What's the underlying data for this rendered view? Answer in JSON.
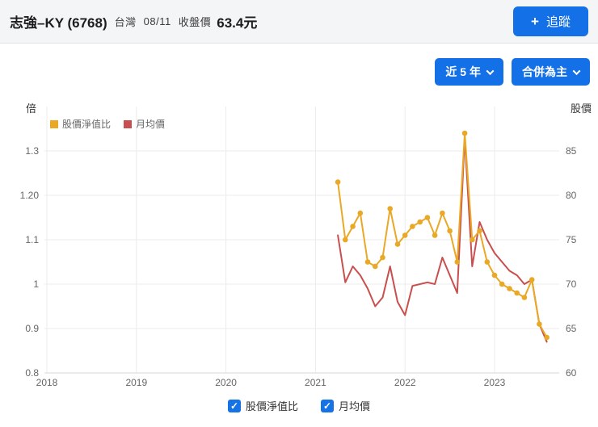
{
  "header": {
    "stock_name": "志強–KY (6768)",
    "market": "台灣",
    "date": "08/11",
    "close_label": "收盤價",
    "close_price": "63.4元",
    "follow": {
      "plus": "+",
      "label": "追蹤"
    }
  },
  "toolbar": {
    "range_button": "近 5 年",
    "mode_button": "合併為主"
  },
  "footer": {
    "checkboxes": [
      {
        "label": "股價淨值比",
        "checked": true
      },
      {
        "label": "月均價",
        "checked": true
      }
    ]
  },
  "colors": {
    "accent_blue": "#1470e6",
    "pb_yellow": "#e9a825",
    "price_red": "#c94f4e"
  },
  "chart_data": {
    "type": "line",
    "title": "",
    "x_tick_labels": [
      "2018",
      "2019",
      "2020",
      "2021",
      "2022",
      "2023"
    ],
    "x_tick_values": [
      2018,
      2019,
      2020,
      2021,
      2022,
      2023
    ],
    "x_range": [
      2018,
      2023.72
    ],
    "grid": true,
    "legend_position": "top-left",
    "left_axis": {
      "unit": "倍",
      "tick_labels": [
        "1.3",
        "1.20",
        "1.1",
        "1",
        "0.9",
        "0.8"
      ],
      "tick_values": [
        1.3,
        1.2,
        1.1,
        1.0,
        0.9,
        0.8
      ],
      "range": [
        0.8,
        1.4
      ]
    },
    "right_axis": {
      "unit": "股價",
      "tick_labels": [
        "85",
        "80",
        "75",
        "70",
        "65",
        "60"
      ],
      "tick_values": [
        85,
        80,
        75,
        70,
        65,
        60
      ],
      "range": [
        60,
        90
      ]
    },
    "x": [
      "2021-04",
      "2021-05",
      "2021-06",
      "2021-07",
      "2021-08",
      "2021-09",
      "2021-10",
      "2021-11",
      "2021-12",
      "2022-01",
      "2022-02",
      "2022-03",
      "2022-04",
      "2022-05",
      "2022-06",
      "2022-07",
      "2022-08",
      "2022-09",
      "2022-10",
      "2022-11",
      "2022-12",
      "2023-01",
      "2023-02",
      "2023-03",
      "2023-04",
      "2023-05",
      "2023-06",
      "2023-07",
      "2023-08"
    ],
    "series": [
      {
        "name": "股價淨值比",
        "axis": "left",
        "color": "#e9a825",
        "marker": true,
        "values": [
          1.23,
          1.1,
          1.13,
          1.16,
          1.05,
          1.04,
          1.06,
          1.17,
          1.09,
          1.11,
          1.13,
          1.14,
          1.15,
          1.11,
          1.16,
          1.12,
          1.05,
          1.34,
          1.1,
          1.12,
          1.05,
          1.02,
          1.0,
          0.99,
          0.98,
          0.97,
          1.01,
          0.91,
          0.88
        ]
      },
      {
        "name": "月均價",
        "axis": "right",
        "color": "#c94f4e",
        "marker": false,
        "values": [
          75.5,
          70.2,
          72.0,
          71.0,
          69.5,
          67.5,
          68.5,
          72.0,
          68.0,
          66.5,
          69.8,
          70.0,
          70.2,
          70.0,
          73.0,
          71.0,
          69.0,
          86.5,
          72.0,
          77.0,
          75.0,
          73.5,
          72.5,
          71.5,
          71.0,
          70.0,
          70.5,
          65.5,
          63.5
        ]
      }
    ]
  }
}
